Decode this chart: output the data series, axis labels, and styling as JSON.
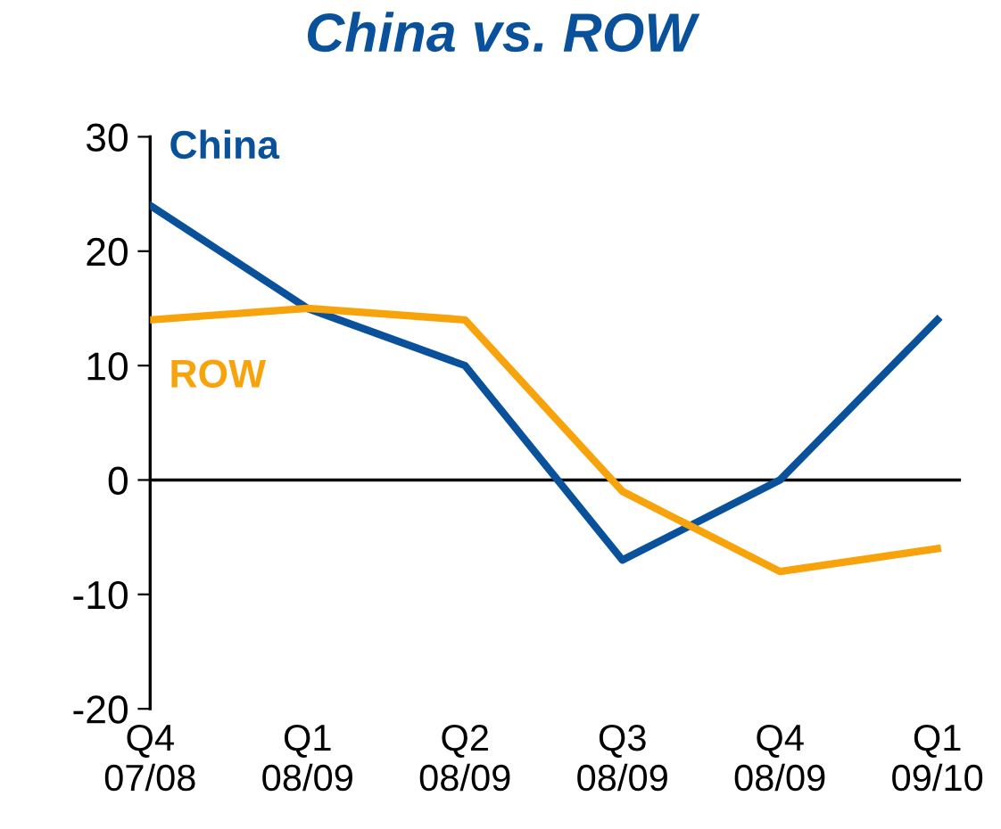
{
  "chart_data": {
    "type": "line",
    "title": "China vs. ROW",
    "categories": [
      "Q4\n07/08",
      "Q1\n08/09",
      "Q2\n08/09",
      "Q3\n08/09",
      "Q4\n08/09",
      "Q1\n09/10"
    ],
    "series": [
      {
        "name": "China",
        "color": "#0a519c",
        "values": [
          24,
          15,
          10,
          -7,
          0,
          14
        ]
      },
      {
        "name": "ROW",
        "color": "#f7a30c",
        "values": [
          14,
          15,
          14,
          -1,
          -8,
          -6
        ]
      }
    ],
    "ylim": [
      -20,
      30
    ],
    "yticks": [
      -20,
      -10,
      0,
      10,
      20,
      30
    ],
    "ref_lines": [
      {
        "axis": "y",
        "value": 0,
        "color": "#000000"
      }
    ],
    "grid": false,
    "legend": false,
    "marker": "none",
    "line_style": "solid"
  }
}
